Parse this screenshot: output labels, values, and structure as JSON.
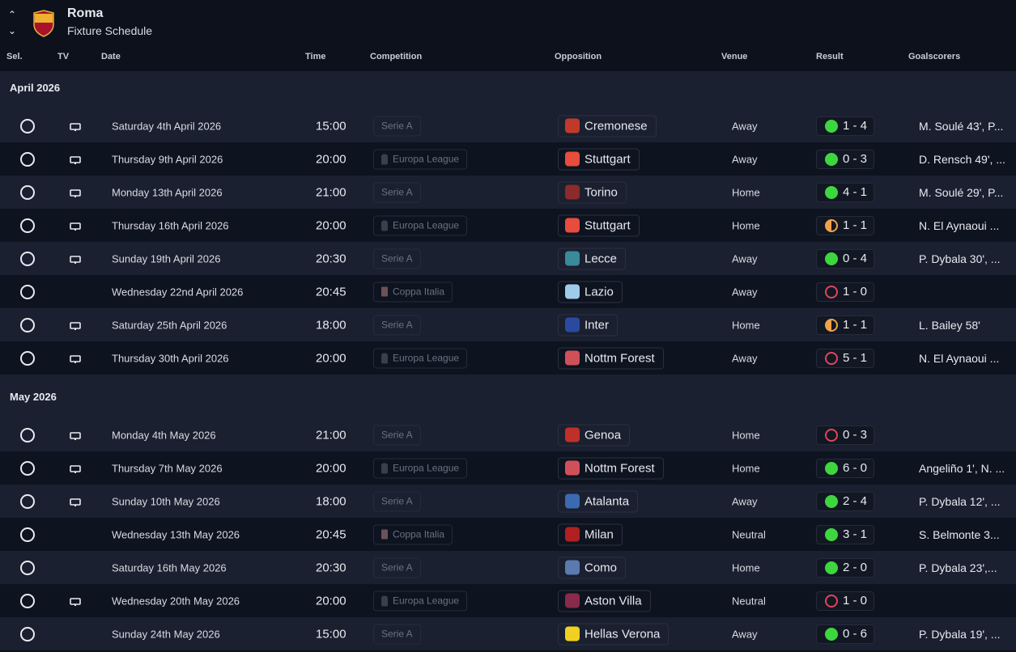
{
  "header": {
    "title": "Roma",
    "subtitle": "Fixture Schedule"
  },
  "columns": {
    "sel": "Sel.",
    "tv": "TV",
    "date": "Date",
    "time": "Time",
    "competition": "Competition",
    "opposition": "Opposition",
    "venue": "Venue",
    "result": "Result",
    "goalscorers": "Goalscorers"
  },
  "colors": {
    "win": "#3ed63e",
    "draw": "#f0a24a",
    "loss": "#e0465a"
  },
  "months": [
    {
      "label": "April 2026",
      "fixtures": [
        {
          "tv": true,
          "date": "Saturday 4th April 2026",
          "time": "15:00",
          "competition": "Serie A",
          "opposition": "Cremonese",
          "badge": "#c0392b",
          "venue": "Away",
          "outcome": "w",
          "score": "1 - 4",
          "scorers": "M. Soulé 43', P..."
        },
        {
          "tv": true,
          "date": "Thursday 9th April 2026",
          "time": "20:00",
          "competition": "Europa League",
          "opposition": "Stuttgart",
          "badge": "#e74c3c",
          "venue": "Away",
          "outcome": "w",
          "score": "0 - 3",
          "scorers": "D. Rensch 49', ..."
        },
        {
          "tv": true,
          "date": "Monday 13th April 2026",
          "time": "21:00",
          "competition": "Serie A",
          "opposition": "Torino",
          "badge": "#8b2b2b",
          "venue": "Home",
          "outcome": "w",
          "score": "4 - 1",
          "scorers": "M. Soulé 29', P..."
        },
        {
          "tv": true,
          "date": "Thursday 16th April 2026",
          "time": "20:00",
          "competition": "Europa League",
          "opposition": "Stuttgart",
          "badge": "#e74c3c",
          "venue": "Home",
          "outcome": "d",
          "score": "1 - 1",
          "scorers": "N. El Aynaoui ..."
        },
        {
          "tv": true,
          "date": "Sunday 19th April 2026",
          "time": "20:30",
          "competition": "Serie A",
          "opposition": "Lecce",
          "badge": "#3a8a9a",
          "venue": "Away",
          "outcome": "w",
          "score": "0 - 4",
          "scorers": "P. Dybala 30', ..."
        },
        {
          "tv": false,
          "date": "Wednesday 22nd April 2026",
          "time": "20:45",
          "competition": "Coppa Italia",
          "opposition": "Lazio",
          "badge": "#9ecbe8",
          "venue": "Away",
          "outcome": "l",
          "score": "1 - 0",
          "scorers": ""
        },
        {
          "tv": true,
          "date": "Saturday 25th April 2026",
          "time": "18:00",
          "competition": "Serie A",
          "opposition": "Inter",
          "badge": "#2a4aa0",
          "venue": "Home",
          "outcome": "d",
          "score": "1 - 1",
          "scorers": "L. Bailey 58'"
        },
        {
          "tv": true,
          "date": "Thursday 30th April 2026",
          "time": "20:00",
          "competition": "Europa League",
          "opposition": "Nottm Forest",
          "badge": "#d0505a",
          "venue": "Away",
          "outcome": "l",
          "score": "5 - 1",
          "scorers": "N. El Aynaoui ..."
        }
      ]
    },
    {
      "label": "May 2026",
      "fixtures": [
        {
          "tv": true,
          "date": "Monday 4th May 2026",
          "time": "21:00",
          "competition": "Serie A",
          "opposition": "Genoa",
          "badge": "#c0302a",
          "venue": "Home",
          "outcome": "l",
          "score": "0 - 3",
          "scorers": ""
        },
        {
          "tv": true,
          "date": "Thursday 7th May 2026",
          "time": "20:00",
          "competition": "Europa League",
          "opposition": "Nottm Forest",
          "badge": "#d0505a",
          "venue": "Home",
          "outcome": "w",
          "score": "6 - 0",
          "scorers": "Angeliño 1', N. ..."
        },
        {
          "tv": true,
          "date": "Sunday 10th May 2026",
          "time": "18:00",
          "competition": "Serie A",
          "opposition": "Atalanta",
          "badge": "#3a6ab0",
          "venue": "Away",
          "outcome": "w",
          "score": "2 - 4",
          "scorers": "P. Dybala 12', ..."
        },
        {
          "tv": false,
          "date": "Wednesday 13th May 2026",
          "time": "20:45",
          "competition": "Coppa Italia",
          "opposition": "Milan",
          "badge": "#b02020",
          "venue": "Neutral",
          "outcome": "w",
          "score": "3 - 1",
          "scorers": "S. Belmonte 3..."
        },
        {
          "tv": false,
          "date": "Saturday 16th May 2026",
          "time": "20:30",
          "competition": "Serie A",
          "opposition": "Como",
          "badge": "#5a7ab0",
          "venue": "Home",
          "outcome": "w",
          "score": "2 - 0",
          "scorers": "P. Dybala 23',..."
        },
        {
          "tv": true,
          "date": "Wednesday 20th May 2026",
          "time": "20:00",
          "competition": "Europa League",
          "opposition": "Aston Villa",
          "badge": "#8a2a4a",
          "venue": "Neutral",
          "outcome": "l",
          "score": "1 - 0",
          "scorers": ""
        },
        {
          "tv": false,
          "date": "Sunday 24th May 2026",
          "time": "15:00",
          "competition": "Serie A",
          "opposition": "Hellas Verona",
          "badge": "#f0d020",
          "venue": "Away",
          "outcome": "w",
          "score": "0 - 6",
          "scorers": "P. Dybala 19', ..."
        }
      ]
    }
  ]
}
